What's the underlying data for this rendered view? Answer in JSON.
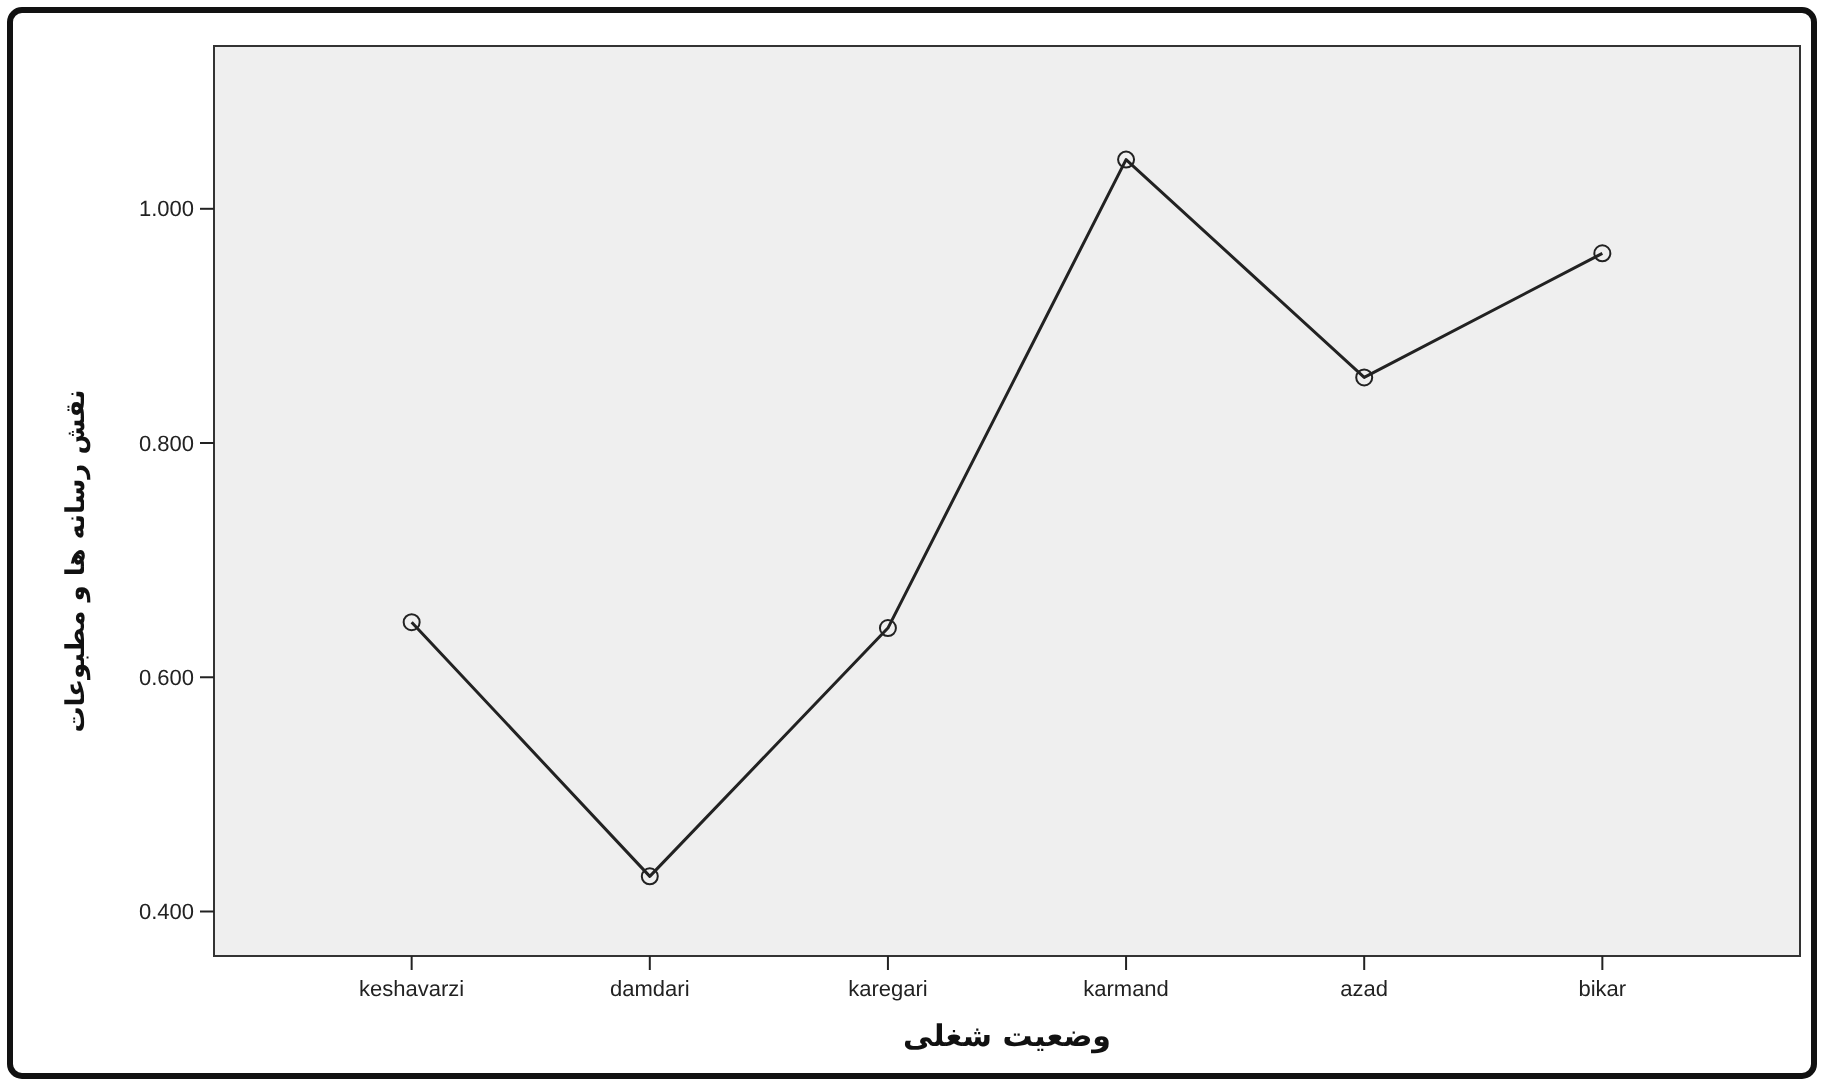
{
  "chart_data": {
    "type": "line",
    "xlabel": "وضعیت شغلی",
    "ylabel": "نقش رسانه ها و مطبوعات",
    "categories": [
      "keshavarzi",
      "damdari",
      "karegari",
      "karmand",
      "azad",
      "bikar"
    ],
    "series": [
      {
        "color": "#222222",
        "values": [
          0.647,
          0.43,
          0.642,
          1.042,
          0.856,
          0.962
        ]
      }
    ],
    "ylim": [
      0.362,
      1.139
    ],
    "yticks": [
      {
        "value": 0.4,
        "label": "0.400"
      },
      {
        "value": 0.6,
        "label": "0.600"
      },
      {
        "value": 0.8,
        "label": "0.800"
      },
      {
        "value": 1.0,
        "label": "1.000"
      }
    ],
    "grid": false,
    "marker": "circle",
    "line_style": "solid"
  }
}
